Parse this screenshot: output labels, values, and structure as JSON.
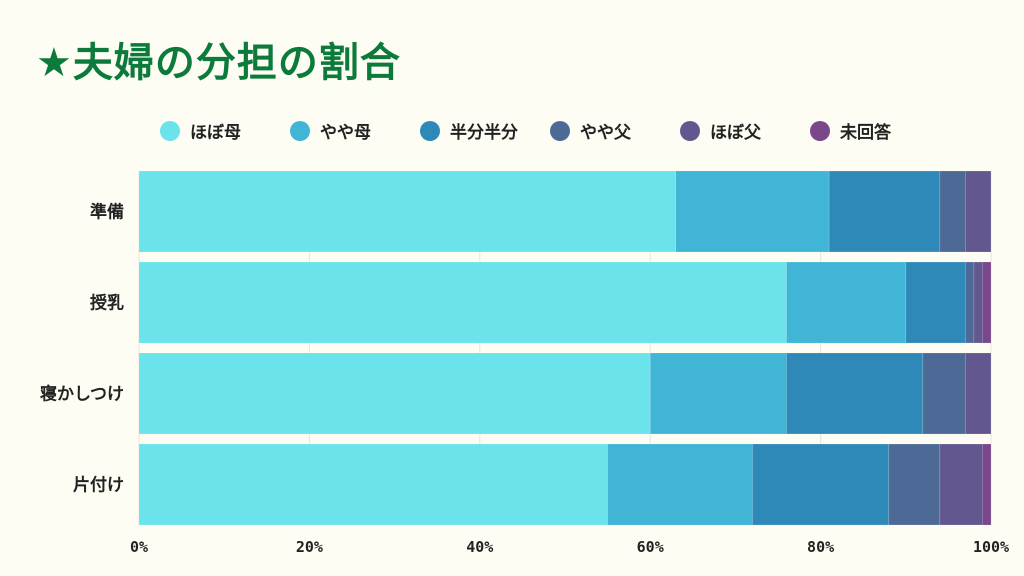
{
  "chart_data": {
    "type": "bar",
    "orientation": "horizontal",
    "stacked": true,
    "title": "★夫婦の分担の割合",
    "categories": [
      "準備",
      "授乳",
      "寝かしつけ",
      "片付け"
    ],
    "series": [
      {
        "name": "ほぼ母",
        "color": "#6ae4ea",
        "values": [
          63,
          76,
          60,
          55
        ]
      },
      {
        "name": "やや母",
        "color": "#40b5d6",
        "values": [
          18,
          14,
          16,
          17
        ]
      },
      {
        "name": "半分半分",
        "color": "#2e89b8",
        "values": [
          13,
          7,
          16,
          16
        ]
      },
      {
        "name": "やや父",
        "color": "#4d6a96",
        "values": [
          3,
          1,
          5,
          6
        ]
      },
      {
        "name": "ほぼ父",
        "color": "#62588f",
        "values": [
          3,
          1,
          3,
          5
        ]
      },
      {
        "name": "未回答",
        "color": "#7b478b",
        "values": [
          0,
          1,
          0,
          1
        ]
      }
    ],
    "xticks": [
      "0%",
      "20%",
      "40%",
      "60%",
      "80%",
      "100%"
    ],
    "xlim": [
      0,
      100
    ],
    "grid": true,
    "legend_position": "top"
  }
}
